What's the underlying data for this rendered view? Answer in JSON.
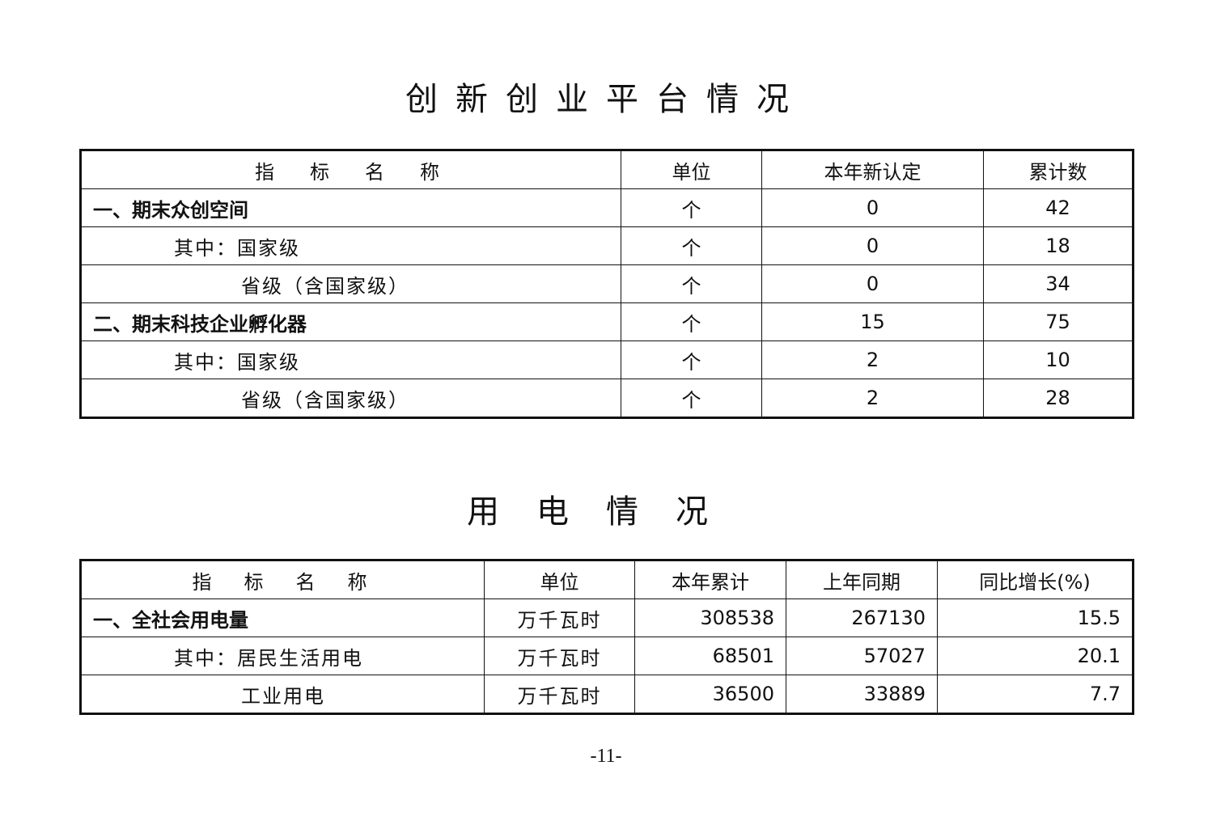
{
  "section1": {
    "title": "创新创业平台情况",
    "headers": [
      "指　标　名　称",
      "单位",
      "本年新认定",
      "累计数"
    ],
    "rows": [
      {
        "name": "一、期末众创空间",
        "unit": "个",
        "new": "0",
        "total": "42"
      },
      {
        "name": "其中：国家级",
        "unit": "个",
        "new": "0",
        "total": "18"
      },
      {
        "name": "省级（含国家级）",
        "unit": "个",
        "new": "0",
        "total": "34"
      },
      {
        "name": "二、期末科技企业孵化器",
        "unit": "个",
        "new": "15",
        "total": "75"
      },
      {
        "name": "其中：国家级",
        "unit": "个",
        "new": "2",
        "total": "10"
      },
      {
        "name": "省级（含国家级）",
        "unit": "个",
        "new": "2",
        "total": "28"
      }
    ]
  },
  "section2": {
    "title": "用电情况",
    "headers": [
      "指　标　名　称",
      "单位",
      "本年累计",
      "上年同期",
      "同比增长(%)"
    ],
    "rows": [
      {
        "name": "一、全社会用电量",
        "unit": "万千瓦时",
        "current": "308538",
        "previous": "267130",
        "growth": "15.5"
      },
      {
        "name": "其中：居民生活用电",
        "unit": "万千瓦时",
        "current": "68501",
        "previous": "57027",
        "growth": "20.1"
      },
      {
        "name": "工业用电",
        "unit": "万千瓦时",
        "current": "36500",
        "previous": "33889",
        "growth": "7.7"
      }
    ]
  },
  "page_number": "-11-"
}
